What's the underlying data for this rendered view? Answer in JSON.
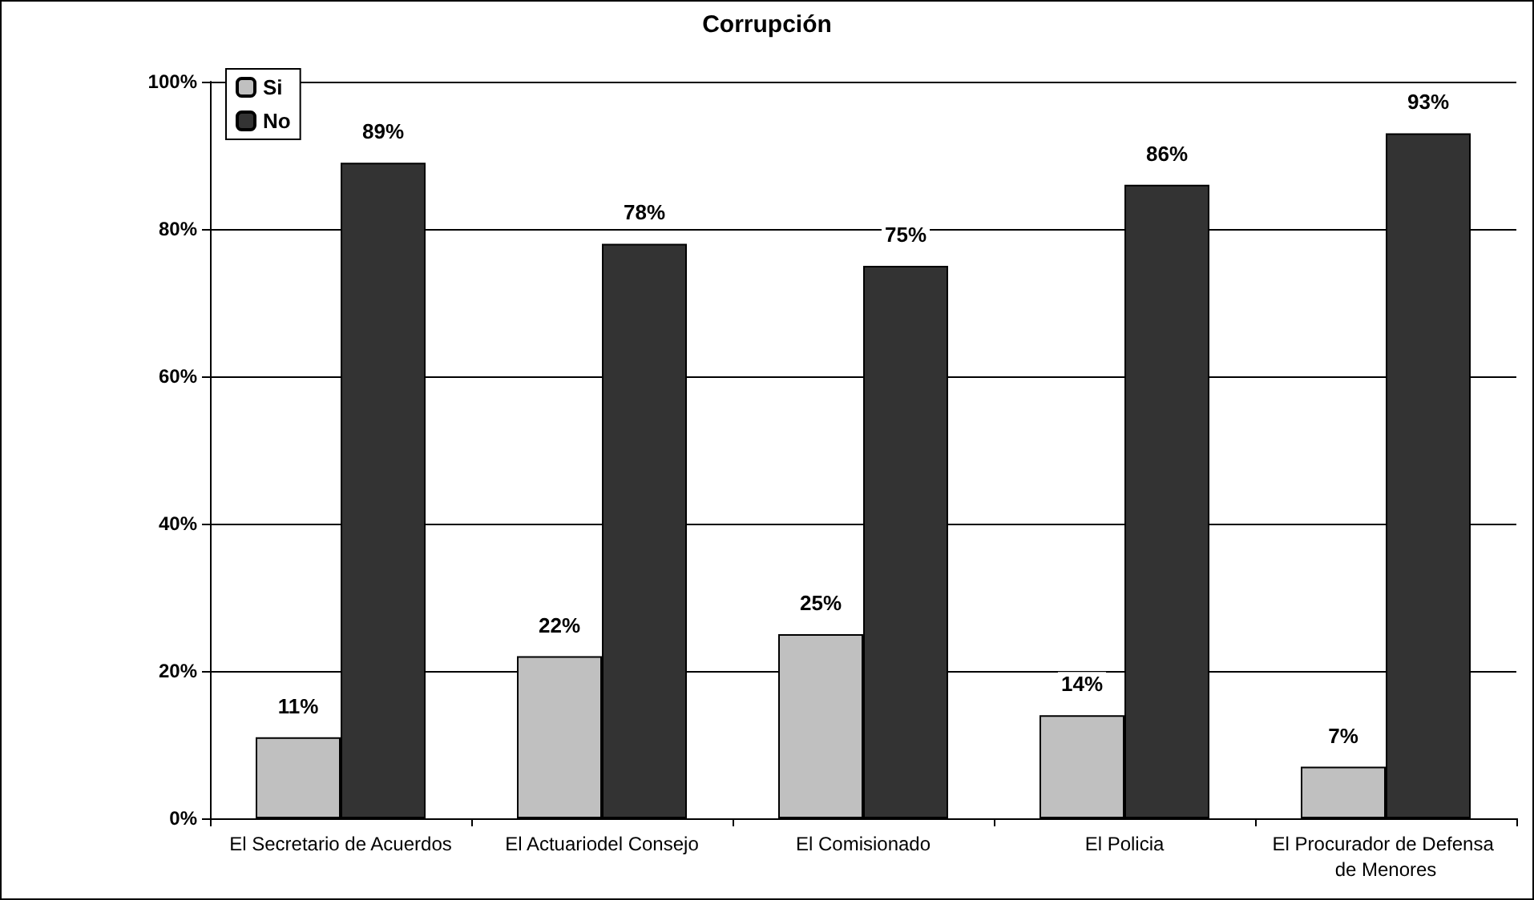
{
  "chart_data": {
    "type": "bar",
    "title": "Corrupción",
    "categories": [
      "El Secretario de Acuerdos",
      "El Actuariodel Consejo",
      "El Comisionado",
      "El Policia",
      "El Procurador de Defensa de Menores"
    ],
    "series": [
      {
        "name": "Si",
        "color": "#c0c0c0",
        "values": [
          11,
          22,
          25,
          14,
          7
        ],
        "value_labels": [
          "11%",
          "22%",
          "25%",
          "14%",
          "7%"
        ]
      },
      {
        "name": "No",
        "color": "#333333",
        "values": [
          89,
          78,
          75,
          86,
          93
        ],
        "value_labels": [
          "89%",
          "78%",
          "75%",
          "86%",
          "93%"
        ]
      }
    ],
    "ylim": [
      0,
      100
    ],
    "yticks": [
      {
        "value": 0,
        "label": "0%"
      },
      {
        "value": 20,
        "label": "20%"
      },
      {
        "value": 40,
        "label": "40%"
      },
      {
        "value": 60,
        "label": "60%"
      },
      {
        "value": 80,
        "label": "80%"
      },
      {
        "value": 100,
        "label": "100%"
      }
    ],
    "grid": "y",
    "legend": "top left"
  }
}
